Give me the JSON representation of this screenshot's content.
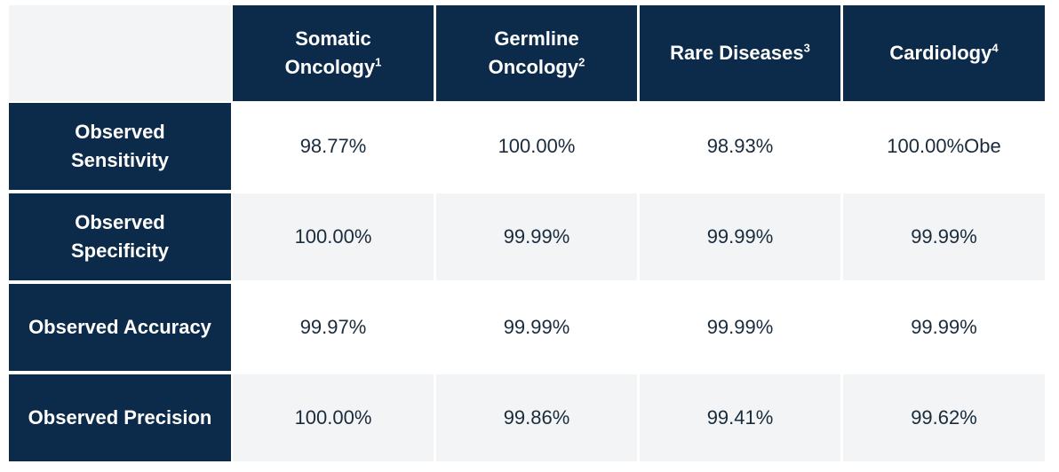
{
  "table": {
    "headers": [
      {
        "lines": [
          "Somatic",
          "Oncology"
        ],
        "note": "1"
      },
      {
        "lines": [
          "Germline",
          "Oncology"
        ],
        "note": "2"
      },
      {
        "lines": [
          "Rare Diseases"
        ],
        "note": "3"
      },
      {
        "lines": [
          "Cardiology"
        ],
        "note": "4"
      }
    ],
    "rows": [
      {
        "label": [
          "Observed",
          "Sensitivity"
        ],
        "cells": [
          "98.77%",
          "100.00%",
          "98.93%",
          "100.00%Obe"
        ]
      },
      {
        "label": [
          "Observed",
          "Specificity"
        ],
        "cells": [
          "100.00%",
          "99.99%",
          "99.99%",
          "99.99%"
        ]
      },
      {
        "label": [
          "Observed Accuracy"
        ],
        "cells": [
          "99.97%",
          "99.99%",
          "99.99%",
          "99.99%"
        ]
      },
      {
        "label": [
          "Observed Precision"
        ],
        "cells": [
          "100.00%",
          "99.86%",
          "99.41%",
          "99.62%"
        ]
      }
    ]
  }
}
